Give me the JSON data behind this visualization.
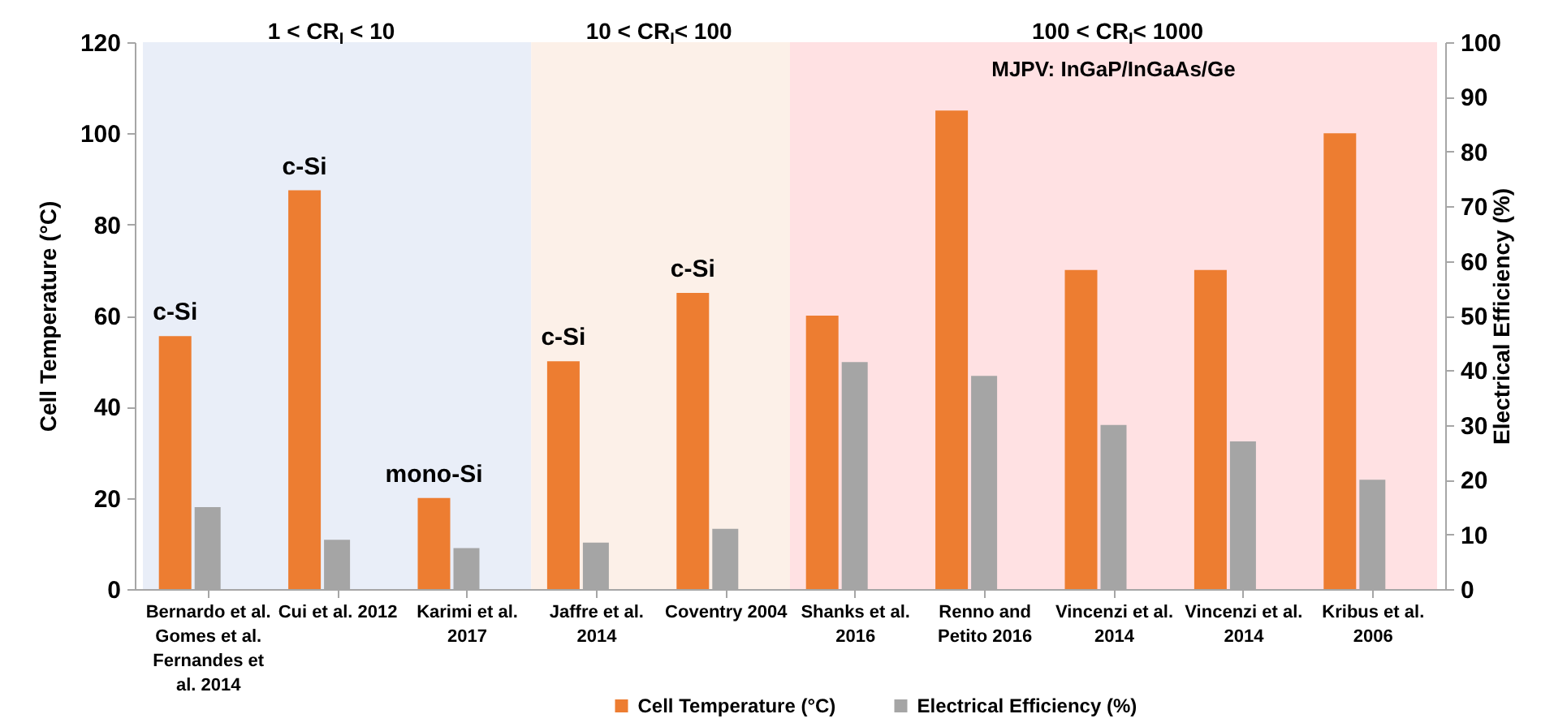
{
  "chart_data": {
    "type": "bar",
    "categories": [
      "Bernardo et al. Gomes et al. Fernandes et al. 2014",
      "Cui et al. 2012",
      "Karimi et al. 2017",
      "Jaffre et al. 2014",
      "Coventry 2004",
      "Shanks et al. 2016",
      "Renno and Petito 2016",
      "Vincenzi et al. 2014",
      "Vincenzi et al. 2014",
      "Kribus et al. 2006"
    ],
    "series": [
      {
        "name": "Cell Temperature (°C)",
        "color": "#ed7d31",
        "values": [
          55.5,
          87.5,
          20,
          50,
          65,
          60,
          105,
          70,
          70,
          100
        ],
        "value_labels": [
          "c-Si",
          "c-Si",
          "mono-Si",
          "c-Si",
          "c-Si",
          null,
          null,
          null,
          null,
          null
        ]
      },
      {
        "name": "Electrical Efficiency (%)",
        "color": "#a5a5a5",
        "axis": "y2",
        "values": [
          15,
          9,
          7.5,
          8.5,
          11,
          41.5,
          39,
          30,
          27,
          20
        ]
      }
    ],
    "ylabel": "Cell Temperature (°C)",
    "y2label": "Electrical Efficiency (%)",
    "ylim": [
      0,
      120
    ],
    "yticks": [
      0,
      20,
      40,
      60,
      80,
      100,
      120
    ],
    "y2lim": [
      0,
      100
    ],
    "y2ticks": [
      0,
      10,
      20,
      30,
      40,
      50,
      60,
      70,
      80,
      90,
      100
    ],
    "bands": [
      {
        "axis": "x",
        "from": "Bernardo et al. Gomes et al. Fernandes et al. 2014",
        "to": "Karimi et al. 2017",
        "label": "1 < CR$_{I}$ < 10",
        "color": "#e9eef8"
      },
      {
        "axis": "x",
        "from": "Jaffre et al. 2014",
        "to": "Coventry 2004",
        "label": "10 < CR$_{I}$< 100",
        "color": "#fcf0e8"
      },
      {
        "axis": "x",
        "from": "Shanks et al. 2016",
        "to": "Kribus et al. 2006",
        "label": "100 < CR$_{I}$< 1000",
        "color": "#ffe1e3"
      }
    ],
    "annotations": [
      "MJPV: InGaP/InGaAs/Ge"
    ],
    "legend": "bottom"
  }
}
